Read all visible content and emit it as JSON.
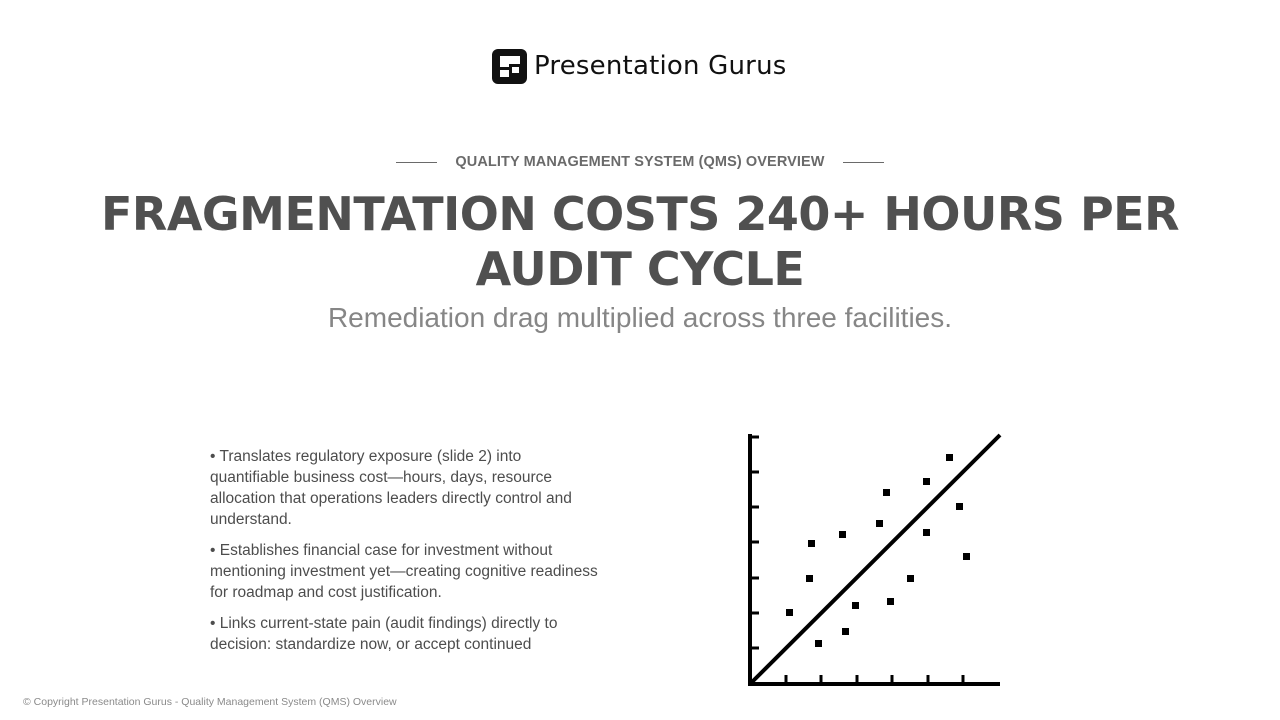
{
  "brand": {
    "name": "Presentation Gurus",
    "logo_icon": "pg-logo-icon",
    "color": "#111111"
  },
  "slide": {
    "eyebrow": "QUALITY MANAGEMENT SYSTEM (QMS) OVERVIEW",
    "title": "FRAGMENTATION COSTS 240+ HOURS PER AUDIT CYCLE",
    "subtitle": "Remediation drag multiplied across three facilities.",
    "bullets": [
      "• Translates regulatory exposure (slide 2) into quantifiable business cost—hours, days, resource allocation that operations leaders directly control and understand.",
      "• Establishes financial case for investment without mentioning investment yet—creating cognitive readiness for roadmap and cost justification.",
      "• Links current-state pain (audit findings) directly to decision: standardize now, or accept continued"
    ],
    "illustration_icon": "scatter-plot-trend-icon"
  },
  "footer": {
    "copyright": "© Copyright Presentation Gurus - Quality Management System (QMS) Overview"
  },
  "colors": {
    "title": "#505050",
    "subtitle": "#868686",
    "eyebrow": "#6a6a6a",
    "body_text": "#4d4d4d",
    "footer": "#8a8a8a",
    "background": "#ffffff"
  }
}
